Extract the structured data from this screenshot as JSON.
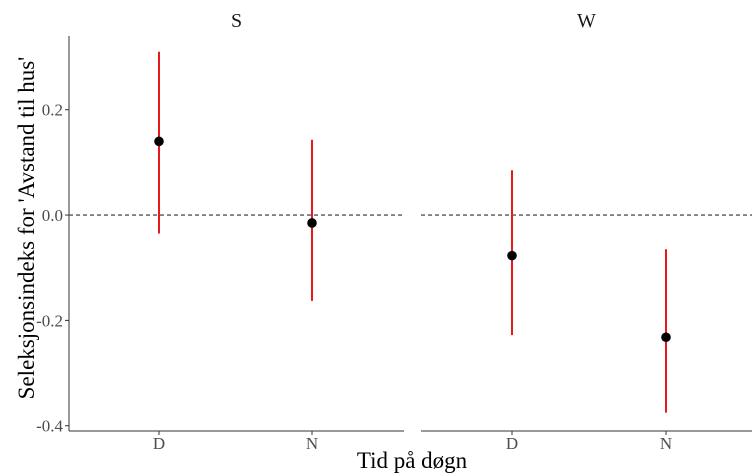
{
  "chart_data": {
    "type": "scatter",
    "subtype": "point-with-error-bars",
    "xlabel": "Tid på døgn",
    "ylabel": "Seleksjonsindeks for 'Avstand til hus'",
    "ylim": [
      -0.41,
      0.34
    ],
    "yticks": [
      {
        "value": 0.2,
        "label": "0.2"
      },
      {
        "value": 0.0,
        "label": "0.0"
      },
      {
        "value": -0.2,
        "label": "-0.2"
      },
      {
        "value": -0.4,
        "label": "-0.4"
      }
    ],
    "categories": [
      "D",
      "N"
    ],
    "reference_line": {
      "value": 0.0,
      "style": "dashed"
    },
    "grid": false,
    "point_color": "#000000",
    "errorbar_color": "#e41a1c",
    "panels": [
      {
        "name": "S",
        "points": [
          {
            "category": "D",
            "y": 0.14,
            "lower": -0.035,
            "upper": 0.31
          },
          {
            "category": "N",
            "y": -0.015,
            "lower": -0.163,
            "upper": 0.143
          }
        ]
      },
      {
        "name": "W",
        "points": [
          {
            "category": "D",
            "y": -0.077,
            "lower": -0.228,
            "upper": 0.085
          },
          {
            "category": "N",
            "y": -0.232,
            "lower": -0.375,
            "upper": -0.065
          }
        ]
      }
    ]
  }
}
